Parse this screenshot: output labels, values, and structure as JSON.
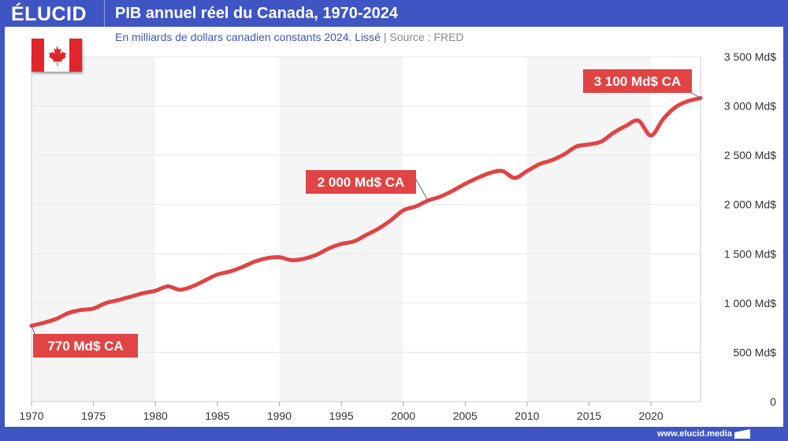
{
  "header": {
    "logo": "ÉLUCID",
    "title": "PIB annuel réel du Canada, 1970-2024"
  },
  "subtitle": {
    "main": "En milliards de dollars canadien constants 2024. Lissé",
    "separator": "|",
    "source": "Source : FRED"
  },
  "footer": {
    "url": "www.elucid.media"
  },
  "colors": {
    "brand": "#3f55c4",
    "line": "#e04444",
    "band": "#f5f5f5"
  },
  "flag_icon": "canada-flag",
  "chart_data": {
    "type": "line",
    "title": "PIB annuel réel du Canada, 1970-2024",
    "xlim": [
      1970,
      2024
    ],
    "ylim": [
      0,
      3500
    ],
    "x_ticks": [
      1970,
      1975,
      1980,
      1985,
      1990,
      1995,
      2000,
      2005,
      2010,
      2015,
      2020
    ],
    "y_ticks": [
      {
        "v": 0,
        "label": "0"
      },
      {
        "v": 500,
        "label": "500 Md$"
      },
      {
        "v": 1000,
        "label": "1 000 Md$"
      },
      {
        "v": 1500,
        "label": "1 500 Md$"
      },
      {
        "v": 2000,
        "label": "2 000 Md$"
      },
      {
        "v": 2500,
        "label": "2 500 Md$"
      },
      {
        "v": 3000,
        "label": "3 000 Md$"
      },
      {
        "v": 3500,
        "label": "3 500 Md$"
      }
    ],
    "grid": true,
    "y_axis_side": "right",
    "x": [
      1970,
      1971,
      1972,
      1973,
      1974,
      1975,
      1976,
      1977,
      1978,
      1979,
      1980,
      1981,
      1982,
      1983,
      1984,
      1985,
      1986,
      1987,
      1988,
      1989,
      1990,
      1991,
      1992,
      1993,
      1994,
      1995,
      1996,
      1997,
      1998,
      1999,
      2000,
      2001,
      2002,
      2003,
      2004,
      2005,
      2006,
      2007,
      2008,
      2009,
      2010,
      2011,
      2012,
      2013,
      2014,
      2015,
      2016,
      2017,
      2018,
      2019,
      2020,
      2021,
      2022,
      2023,
      2024
    ],
    "values": [
      770,
      800,
      840,
      900,
      930,
      945,
      1000,
      1030,
      1065,
      1100,
      1125,
      1170,
      1135,
      1170,
      1230,
      1290,
      1320,
      1365,
      1420,
      1455,
      1465,
      1435,
      1450,
      1490,
      1555,
      1600,
      1625,
      1690,
      1755,
      1840,
      1940,
      1980,
      2040,
      2080,
      2140,
      2210,
      2270,
      2320,
      2340,
      2270,
      2340,
      2410,
      2450,
      2510,
      2590,
      2610,
      2640,
      2730,
      2800,
      2850,
      2700,
      2870,
      2990,
      3050,
      3080
    ],
    "annotations": [
      {
        "x": 1970,
        "text": "770 Md$ CA"
      },
      {
        "x": 2002,
        "text": "2 000 Md$ CA"
      },
      {
        "x": 2024,
        "text": "3 100 Md$ CA"
      }
    ]
  }
}
